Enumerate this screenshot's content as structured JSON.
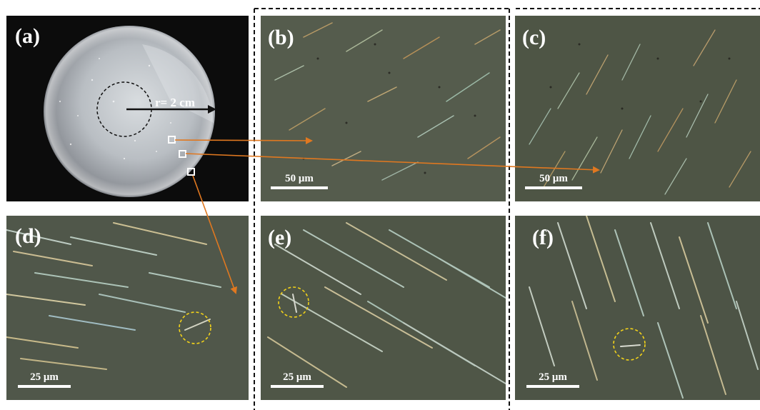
{
  "panels": {
    "a": {
      "label": "(a)",
      "radius_label": "r= 2 cm"
    },
    "b": {
      "label": "(b)",
      "scale": "50 μm"
    },
    "c": {
      "label": "(c)",
      "scale": "50 μm"
    },
    "d": {
      "label": "(d)",
      "scale": "25 μm"
    },
    "e": {
      "label": "(e)",
      "scale": "25 μm"
    },
    "f": {
      "label": "(f)",
      "scale": "25 μm"
    }
  },
  "colors": {
    "arrow": "#e07820",
    "highlight_circle": "#f2d21a",
    "micrograph_bg": "#4f5648",
    "photo_bg": "#0c0c0c"
  }
}
